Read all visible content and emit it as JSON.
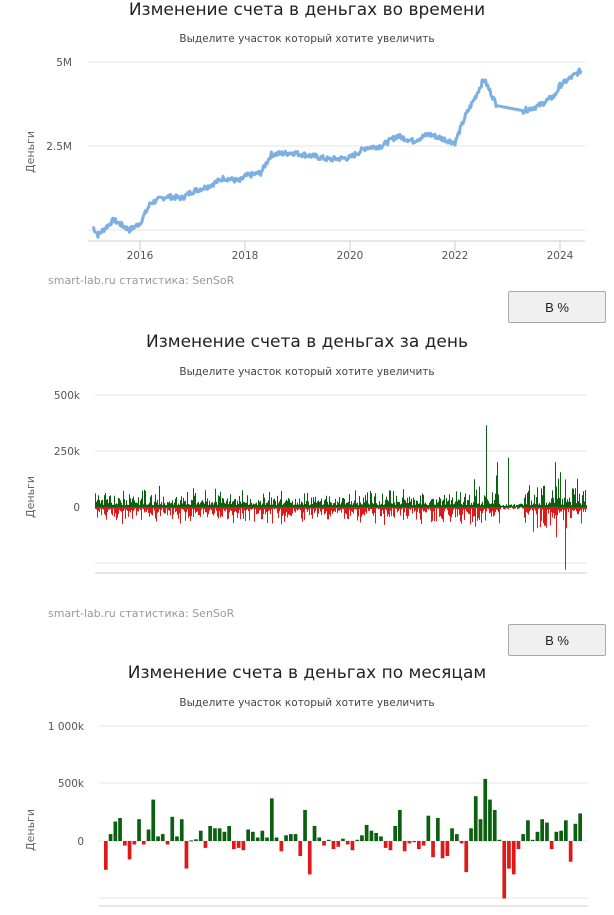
{
  "charts": [
    {
      "title": "Изменение счета в деньгах во времени",
      "subtitle": "Выделите участок который хотите увеличить",
      "ylabel": "Деньги",
      "yticks": [
        "5M",
        "2.5M"
      ],
      "xticks": [
        "2016",
        "2018",
        "2020",
        "2022",
        "2024"
      ],
      "credit": "smart-lab.ru статистика: SenSoR",
      "button": "В %"
    },
    {
      "title": "Изменение счета в деньгах за день",
      "subtitle": "Выделите участок который хотите увеличить",
      "ylabel": "Деньги",
      "yticks": [
        "500k",
        "250k",
        "0"
      ],
      "credit": "smart-lab.ru статистика: SenSoR",
      "button": "В %"
    },
    {
      "title": "Изменение счета в деньгах по месяцам",
      "subtitle": "Выделите участок который хотите увеличить",
      "ylabel": "Деньги",
      "yticks": [
        "1 000k",
        "500k",
        "0"
      ]
    }
  ],
  "colors": {
    "line": "#7cb0e2",
    "positive": "#0b6010",
    "negative": "#e01818",
    "grid": "#e6e6e6",
    "axis": "#cccccc"
  },
  "chart_data": [
    {
      "type": "line",
      "title": "Изменение счета в деньгах во времени",
      "xlabel": "",
      "ylabel": "Деньги",
      "ylim": [
        -300000,
        5200000
      ],
      "x": [
        2015.1,
        2015.2,
        2015.5,
        2015.8,
        2016.0,
        2016.2,
        2016.5,
        2016.8,
        2017.0,
        2017.3,
        2017.6,
        2017.9,
        2018.0,
        2018.3,
        2018.5,
        2018.9,
        2019.3,
        2019.6,
        2020.0,
        2020.3,
        2020.6,
        2020.9,
        2021.2,
        2021.5,
        2021.8,
        2022.0,
        2022.2,
        2022.4,
        2022.55,
        2022.8,
        2023.3,
        2023.6,
        2023.9,
        2024.0,
        2024.4
      ],
      "values": [
        100000,
        -150000,
        300000,
        0,
        200000,
        800000,
        1000000,
        950000,
        1150000,
        1300000,
        1550000,
        1450000,
        1600000,
        1700000,
        2250000,
        2300000,
        2200000,
        2100000,
        2150000,
        2450000,
        2500000,
        2800000,
        2650000,
        2850000,
        2700000,
        2600000,
        3400000,
        4000000,
        4500000,
        3700000,
        3550000,
        3700000,
        4000000,
        4300000,
        4750000
      ]
    },
    {
      "type": "bar",
      "title": "Изменение счета в деньгах за день",
      "ylabel": "Деньги",
      "ylim": [
        -300000,
        500000
      ],
      "note": "daily P&L bars, mostly within ±100k; notable spikes: +365k (~2022.6), -280k (~2024.1)",
      "highlights": [
        {
          "x": 2022.6,
          "value": 365000
        },
        {
          "x": 2022.8,
          "value": 200000
        },
        {
          "x": 2023.0,
          "value": 220000
        },
        {
          "x": 2023.9,
          "value": 200000
        },
        {
          "x": 2024.1,
          "value": -280000
        }
      ]
    },
    {
      "type": "bar",
      "title": "Изменение счета в деньгах по месяцам",
      "ylabel": "Деньги",
      "ylim": [
        -500000,
        1000000
      ],
      "values": [
        -250000,
        60000,
        170000,
        200000,
        -40000,
        -160000,
        -30000,
        190000,
        -30000,
        100000,
        360000,
        40000,
        60000,
        -30000,
        210000,
        40000,
        190000,
        -240000,
        5000,
        15000,
        90000,
        -60000,
        130000,
        110000,
        110000,
        80000,
        130000,
        -70000,
        -60000,
        -80000,
        100000,
        80000,
        30000,
        90000,
        30000,
        370000,
        30000,
        -90000,
        50000,
        60000,
        60000,
        -130000,
        270000,
        -290000,
        130000,
        30000,
        -40000,
        10000,
        -70000,
        -50000,
        20000,
        -30000,
        -80000,
        10000,
        50000,
        140000,
        90000,
        70000,
        40000,
        -60000,
        -80000,
        130000,
        270000,
        -90000,
        -20000,
        -10000,
        -70000,
        -40000,
        220000,
        -140000,
        200000,
        -150000,
        -130000,
        110000,
        60000,
        -20000,
        -270000,
        110000,
        390000,
        190000,
        540000,
        360000,
        270000,
        10000,
        -500000,
        -240000,
        -290000,
        -70000,
        60000,
        180000,
        10000,
        80000,
        190000,
        160000,
        -70000,
        80000,
        90000,
        180000,
        -180000,
        150000,
        240000
      ]
    }
  ]
}
